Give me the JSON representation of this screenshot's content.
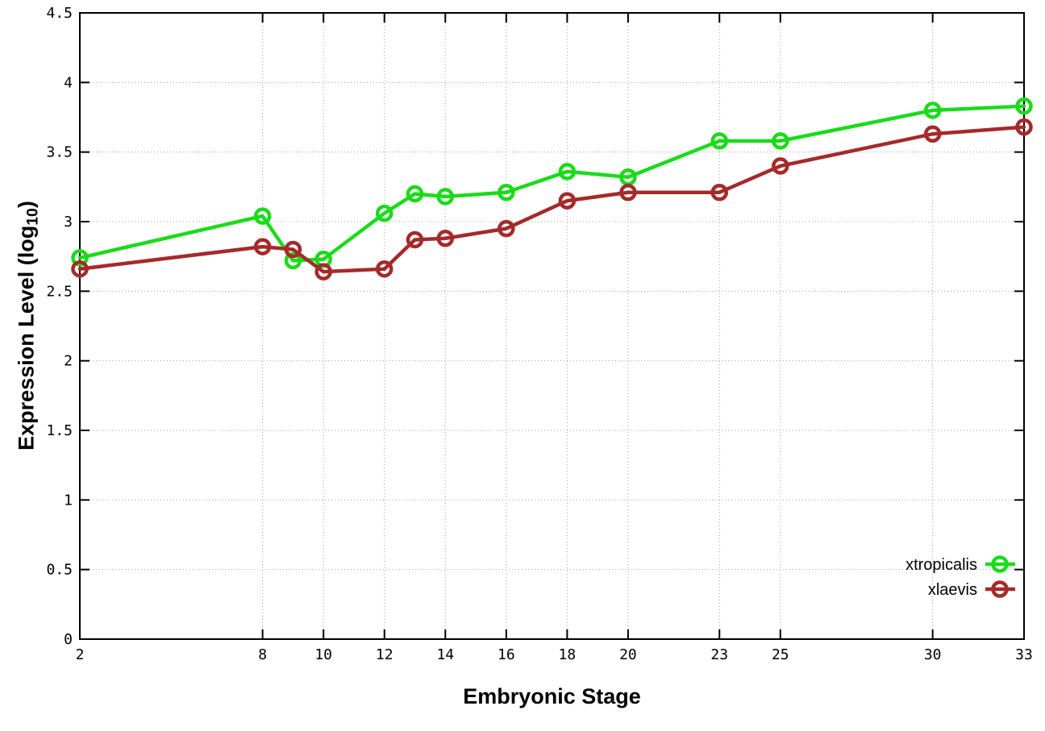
{
  "chart_data": {
    "type": "line",
    "title": "",
    "xlabel": "Embryonic Stage",
    "ylabel_prefix": "Expression Level (log",
    "ylabel_sub": "10",
    "ylabel_suffix": ")",
    "x": [
      2,
      8,
      9,
      10,
      12,
      13,
      14,
      16,
      18,
      20,
      23,
      25,
      30,
      33
    ],
    "series": [
      {
        "name": "xtropicalis",
        "color": "#1adb1a",
        "values": [
          2.74,
          3.04,
          2.72,
          2.73,
          3.06,
          3.2,
          3.18,
          3.21,
          3.36,
          3.32,
          3.58,
          3.58,
          3.8,
          3.83
        ]
      },
      {
        "name": "xlaevis",
        "color": "#a52a2a",
        "values": [
          2.66,
          2.82,
          2.8,
          2.64,
          2.66,
          2.87,
          2.88,
          2.95,
          3.15,
          3.21,
          3.21,
          3.4,
          3.63,
          3.68
        ]
      }
    ],
    "xticks": [
      2,
      8,
      10,
      12,
      14,
      16,
      18,
      20,
      23,
      25,
      30,
      33
    ],
    "yticks": [
      0,
      0.5,
      1,
      1.5,
      2,
      2.5,
      3,
      3.5,
      4,
      4.5
    ],
    "xlim": [
      2,
      33
    ],
    "ylim": [
      0,
      4.5
    ],
    "grid": true,
    "legend_position": "inside-bottom-right",
    "style": {
      "grid_color": "#9e9e9e",
      "axis_color": "#000000",
      "background": "#ffffff",
      "line_width": 4.5,
      "marker": "open-circle",
      "marker_radius": 8.5
    }
  }
}
